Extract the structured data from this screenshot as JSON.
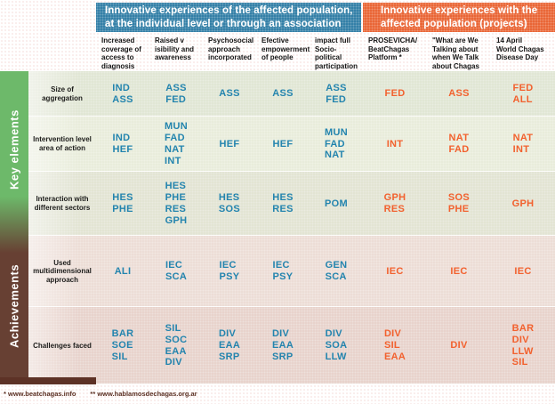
{
  "banners": {
    "left": "Innovative experiences of the affected population,\nat the individual level or through an association",
    "right": "Innovative experiences with the\naffected population (projects)"
  },
  "columns": [
    "Increased\ncoverage of\naccess to\ndiagnosis and\ntreatment",
    "Raised v\nisibility and\nawareness",
    "Psychosocial\napproach\nincorporated",
    "Efective\nempowerment\nof people",
    "impact full\nSocio-political\nparticipation",
    "PROSEVICHA/\nBeatChagas\nPlatform *",
    "\"What are We\nTalking about\nwhen We Talk\nabout Chagas\nDisease? \"",
    "14 April\nWorld Chagas\nDisease Day"
  ],
  "sections": [
    {
      "label": "Key elements",
      "color": "#6db96a"
    },
    {
      "label": "Achievements",
      "color": "#674033"
    }
  ],
  "rows": [
    {
      "label": "Size of aggregation",
      "cells": [
        "IND\nASS",
        "ASS\nFED",
        "ASS",
        "ASS",
        "ASS\nFED",
        "FED",
        "ASS",
        "FED\nALL"
      ]
    },
    {
      "label": "Intervention level area of action",
      "cells": [
        "IND\nHEF",
        "MUN\nFAD\nNAT\nINT",
        "HEF",
        "HEF",
        "MUN\nFAD\nNAT",
        "INT",
        "NAT\nFAD",
        "NAT\nINT"
      ]
    },
    {
      "label": "Interaction with different sectors",
      "cells": [
        "HES\nPHE",
        "HES\nPHE\nRES\nGPH",
        "HES\nSOS",
        "HES\nRES",
        "POM",
        "GPH\nRES",
        "SOS\nPHE",
        "GPH"
      ]
    },
    {
      "label": "Used multidimensional approach",
      "cells": [
        "ALI",
        "IEC\nSCA",
        "IEC\nPSY",
        "IEC\nPSY",
        "GEN\nSCA",
        "IEC",
        "IEC",
        "IEC"
      ]
    },
    {
      "label": "Challenges faced",
      "cells": [
        "BAR\nSOE\nSIL",
        "SIL\nSOC\nEAA\nDIV",
        "DIV\nEAA\nSRP",
        "DIV\nEAA\nSRP",
        "DIV\nSOA\nLLW",
        "DIV\nSIL\nEAA",
        "DIV",
        "BAR\nDIV\nLLW\nSIL"
      ]
    }
  ],
  "footer": {
    "left": "* www.beatchagas.info",
    "right": "** www.hablamosdechagas.org.ar"
  },
  "colors": {
    "banner_left": "#2e7da5",
    "banner_right": "#e96231",
    "cell_blue": "#2384ae",
    "cell_orange": "#f2612e"
  }
}
